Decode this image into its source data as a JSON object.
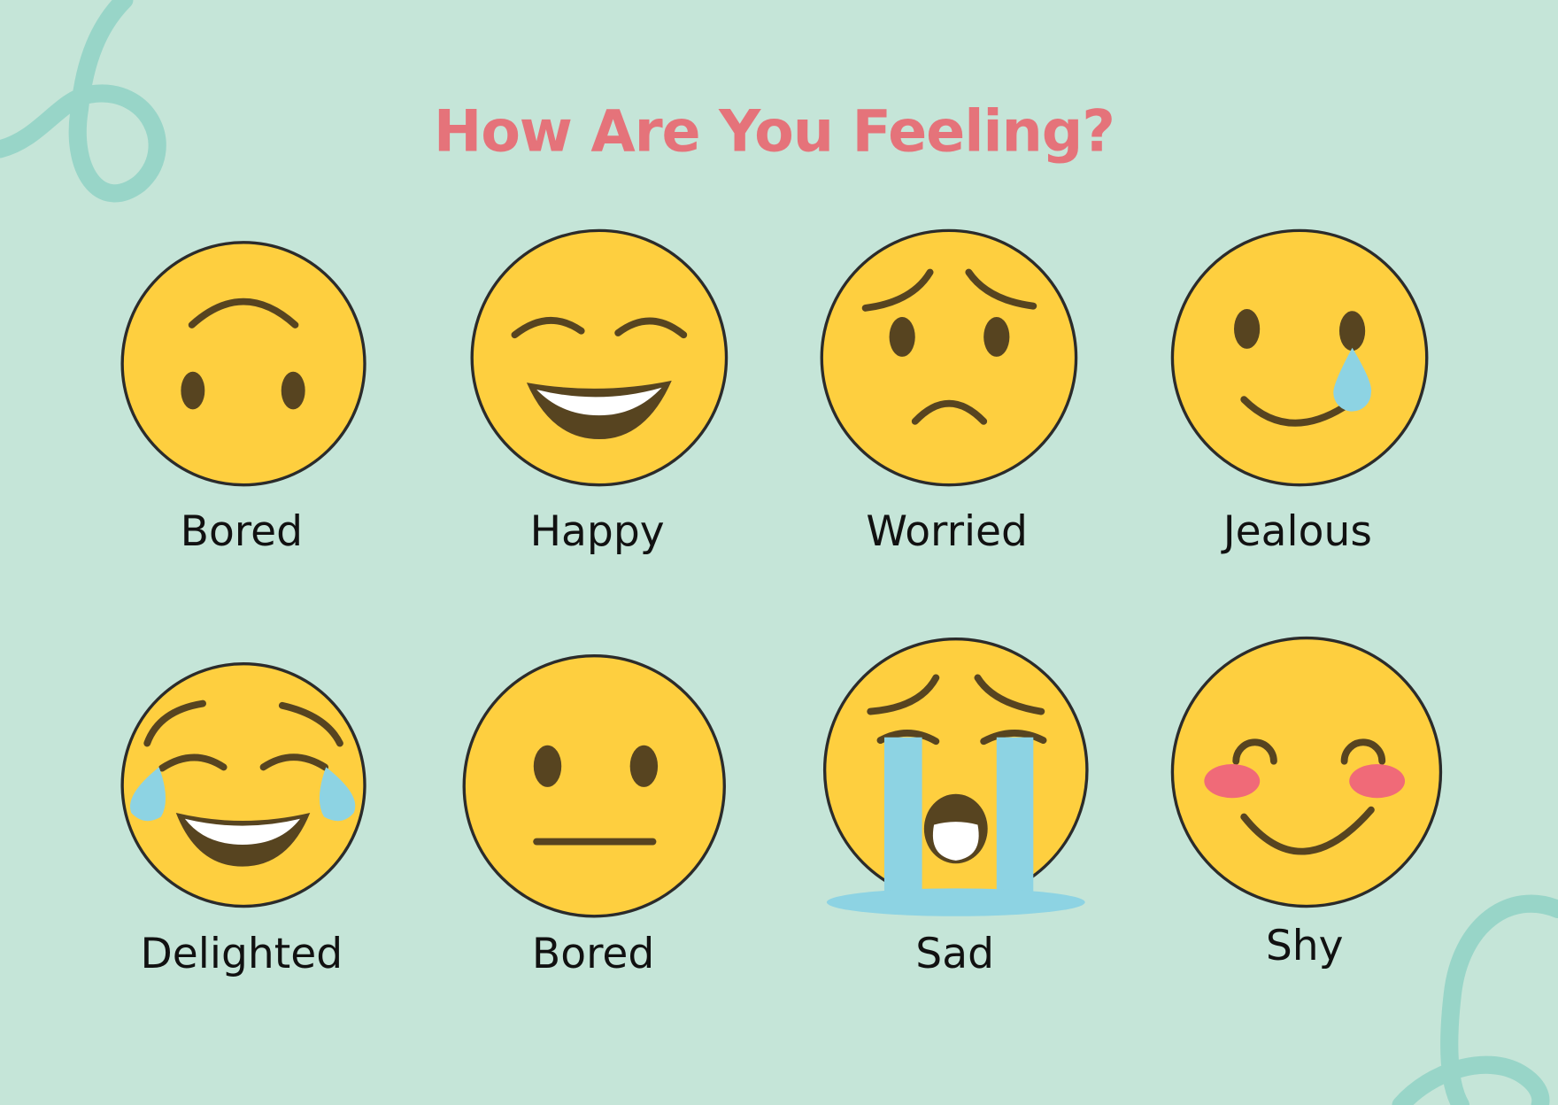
{
  "title": "How Are You Feeling?",
  "emotions": [
    {
      "label": "Bored"
    },
    {
      "label": "Happy"
    },
    {
      "label": "Worried"
    },
    {
      "label": "Jealous"
    },
    {
      "label": "Delighted"
    },
    {
      "label": "Bored"
    },
    {
      "label": "Sad"
    },
    {
      "label": "Shy"
    }
  ],
  "colors": {
    "background": "#c5e5d8",
    "title": "#e5737a",
    "face": "#fecf3f",
    "features": "#574420",
    "tears": "#8dd3e3",
    "blush": "#f06a78",
    "swirl": "#98d5c8"
  }
}
